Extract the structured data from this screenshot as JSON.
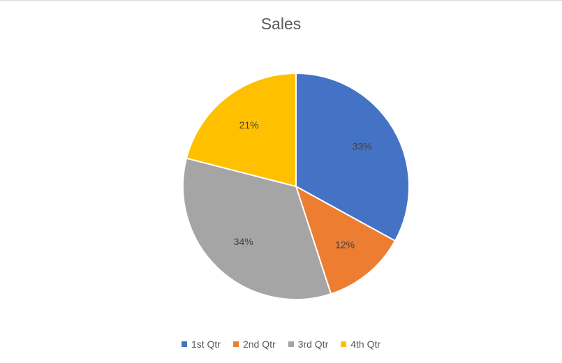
{
  "chart_data": {
    "type": "pie",
    "title": "Sales",
    "categories": [
      "1st Qtr",
      "2nd Qtr",
      "3rd Qtr",
      "4th Qtr"
    ],
    "values": [
      33,
      12,
      34,
      21
    ],
    "labels": [
      "33%",
      "12%",
      "34%",
      "21%"
    ],
    "colors": [
      "#4472C4",
      "#ED7D31",
      "#A5A5A5",
      "#FFC000"
    ],
    "legend_position": "bottom"
  }
}
